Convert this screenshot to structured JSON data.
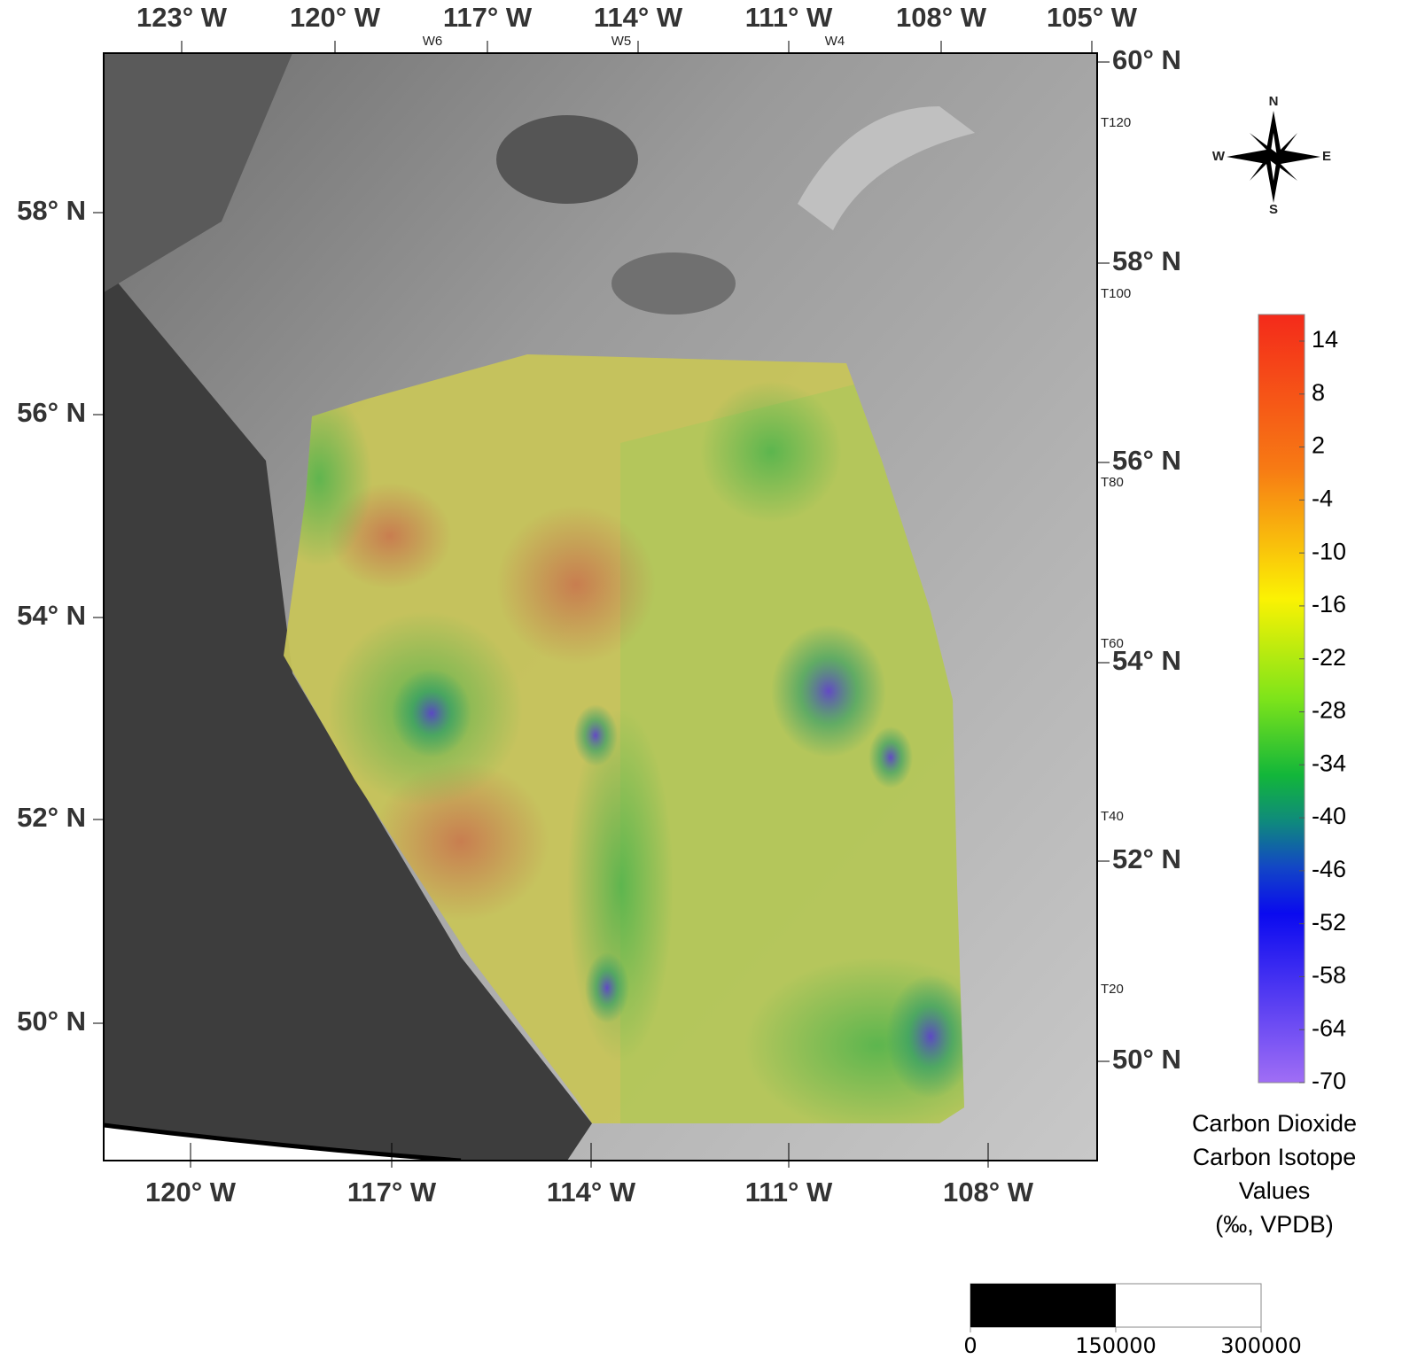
{
  "map": {
    "top_longitudes": [
      "123° W",
      "120° W",
      "117° W",
      "114° W",
      "111° W",
      "108° W",
      "105° W"
    ],
    "bottom_longitudes": [
      "120° W",
      "117° W",
      "114° W",
      "111° W",
      "108° W"
    ],
    "left_latitudes": [
      "58° N",
      "56° N",
      "54° N",
      "52° N",
      "50° N"
    ],
    "right_latitudes": [
      "60° N",
      "58° N",
      "56° N",
      "54° N",
      "52° N",
      "50° N"
    ],
    "meridians": [
      "W6",
      "W5",
      "W4"
    ],
    "townships": [
      "T120",
      "T100",
      "T80",
      "T60",
      "T40",
      "T20"
    ]
  },
  "compass": {
    "north": "N",
    "east": "E",
    "south": "S",
    "west": "W"
  },
  "legend": {
    "title": [
      "Carbon Dioxide",
      "Carbon Isotope",
      "Values",
      "(‰, VPDB)"
    ],
    "ticks": [
      14,
      8,
      2,
      -4,
      -10,
      -16,
      -22,
      -28,
      -34,
      -40,
      -46,
      -52,
      -58,
      -64,
      -70
    ]
  },
  "scale_bar": {
    "labels": [
      0,
      150000,
      300000
    ]
  }
}
